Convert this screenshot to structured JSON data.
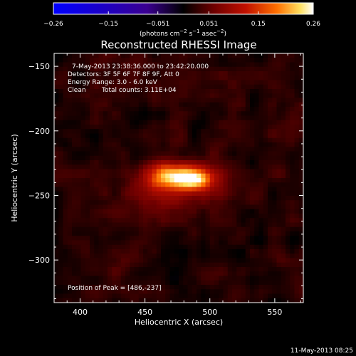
{
  "chart_data": {
    "type": "heatmap",
    "title": "Reconstructed RHESSI Image",
    "xlabel": "Heliocentric X (arcsec)",
    "ylabel": "Heliocentric Y (arcsec)",
    "xlim": [
      380,
      572
    ],
    "ylim": [
      -333,
      -140
    ],
    "x_ticks": [
      {
        "value": 400,
        "label": "400"
      },
      {
        "value": 450,
        "label": "450"
      },
      {
        "value": 500,
        "label": "500"
      },
      {
        "value": 550,
        "label": "550"
      }
    ],
    "y_ticks": [
      {
        "value": -150,
        "label": "−150"
      },
      {
        "value": -200,
        "label": "−200"
      },
      {
        "value": -250,
        "label": "−250"
      },
      {
        "value": -300,
        "label": "−300"
      }
    ],
    "colorbar": {
      "range": [
        -0.26,
        0.26
      ],
      "ticks": [
        {
          "value": -0.26,
          "label": "−0.26"
        },
        {
          "value": -0.15,
          "label": "−0.15"
        },
        {
          "value": -0.051,
          "label": "−0.051"
        },
        {
          "value": 0.051,
          "label": "0.051"
        },
        {
          "value": 0.15,
          "label": "0.15"
        },
        {
          "value": 0.26,
          "label": "0.26"
        }
      ],
      "unit_parts": [
        "(photons cm",
        "−2",
        " s",
        "−1",
        " asec",
        "−2",
        ")"
      ]
    },
    "annotations": {
      "time_range": "7-May-2013 23:38:36.000 to 23:42:20.000",
      "detectors": "Detectors: 3F 5F 6F 7F 8F 9F, Att 0",
      "energy": "Energy Range: 3.0 - 6.0 keV",
      "method": "Clean",
      "counts": "Total counts: 3.11E+04",
      "peak": "Position of Peak = [486,-237]"
    },
    "peak": {
      "x": 486,
      "y": -237,
      "value": 0.26
    },
    "sources": [
      {
        "x": 486,
        "y": -237,
        "amp": 0.2,
        "sx": 11,
        "sy": 6
      },
      {
        "x": 467,
        "y": -234,
        "amp": 0.13,
        "sx": 10,
        "sy": 7
      },
      {
        "x": 472,
        "y": -243,
        "amp": 0.06,
        "sx": 26,
        "sy": 14
      }
    ],
    "background_level": 0.06
  },
  "footer": {
    "date": "11-May-2013 08:25"
  },
  "colors": {
    "background": "#000000",
    "foreground": "#ffffff"
  }
}
